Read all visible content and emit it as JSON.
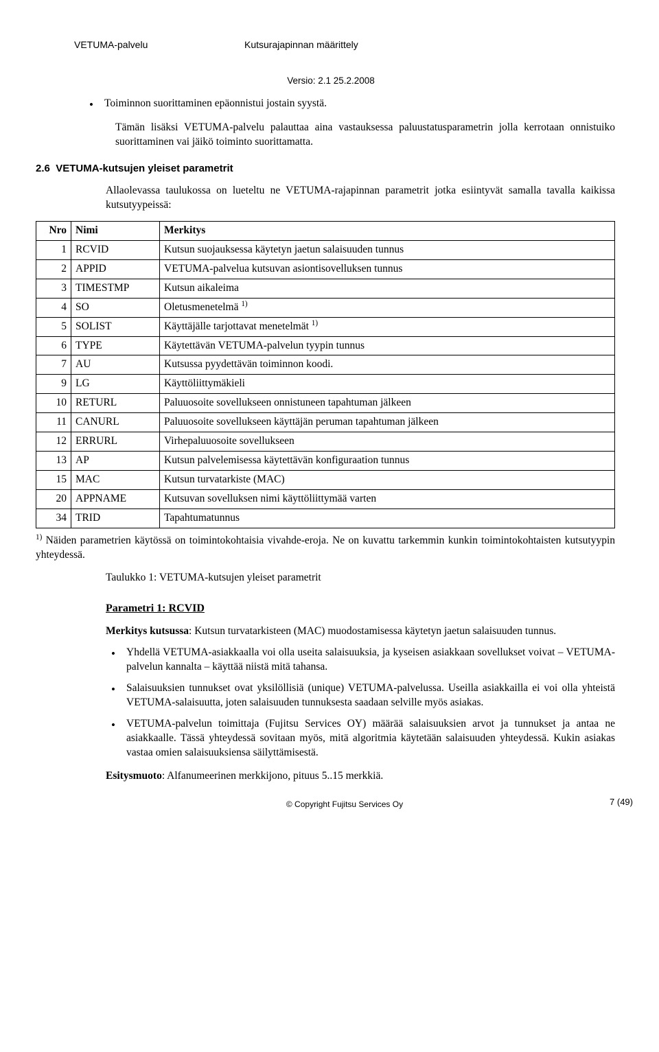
{
  "header": {
    "left": "VETUMA-palvelu",
    "center": "Kutsurajapinnan määrittely",
    "version": "Versio: 2.1  25.2.2008"
  },
  "intro": {
    "bullet": "Toiminnon suorittaminen epäonnistui jostain syystä.",
    "para": "Tämän lisäksi VETUMA-palvelu palauttaa aina vastauksessa paluustatusparametrin jolla kerrotaan onnistuiko suorittaminen vai jäikö toiminto suorittamatta."
  },
  "section": {
    "number": "2.6",
    "title": "VETUMA-kutsujen yleiset parametrit",
    "lead": "Allaolevassa taulukossa on lueteltu ne VETUMA-rajapinnan parametrit jotka esiintyvät samalla tavalla kaikissa kutsutyypeissä:"
  },
  "table": {
    "cols": {
      "nro": "Nro",
      "nimi": "Nimi",
      "merkitys": "Merkitys"
    },
    "rows": [
      {
        "nro": "1",
        "nimi": "RCVID",
        "merkitys": "Kutsun suojauksessa käytetyn jaetun salaisuuden tunnus",
        "sup": ""
      },
      {
        "nro": "2",
        "nimi": "APPID",
        "merkitys": "VETUMA-palvelua kutsuvan asiontisovelluksen tunnus",
        "sup": ""
      },
      {
        "nro": "3",
        "nimi": "TIMESTMP",
        "merkitys": "Kutsun aikaleima",
        "sup": ""
      },
      {
        "nro": "4",
        "nimi": "SO",
        "merkitys": "Oletusmenetelmä ",
        "sup": "1)"
      },
      {
        "nro": "5",
        "nimi": "SOLIST",
        "merkitys": "Käyttäjälle tarjottavat menetelmät ",
        "sup": "1)"
      },
      {
        "nro": "6",
        "nimi": "TYPE",
        "merkitys": "Käytettävän VETUMA-palvelun tyypin tunnus",
        "sup": ""
      },
      {
        "nro": "7",
        "nimi": "AU",
        "merkitys": "Kutsussa pyydettävän toiminnon koodi.",
        "sup": ""
      },
      {
        "nro": "9",
        "nimi": "LG",
        "merkitys": "Käyttöliittymäkieli",
        "sup": ""
      },
      {
        "nro": "10",
        "nimi": "RETURL",
        "merkitys": "Paluuosoite sovellukseen onnistuneen tapahtuman jälkeen",
        "sup": ""
      },
      {
        "nro": "11",
        "nimi": "CANURL",
        "merkitys": "Paluuosoite sovellukseen käyttäjän peruman tapahtuman jälkeen",
        "sup": ""
      },
      {
        "nro": "12",
        "nimi": "ERRURL",
        "merkitys": "Virhepaluuosoite sovellukseen",
        "sup": ""
      },
      {
        "nro": "13",
        "nimi": "AP",
        "merkitys": "Kutsun palvelemisessa käytettävän konfiguraation tunnus",
        "sup": ""
      },
      {
        "nro": "15",
        "nimi": "MAC",
        "merkitys": "Kutsun turvatarkiste (MAC)",
        "sup": ""
      },
      {
        "nro": "20",
        "nimi": "APPNAME",
        "merkitys": "Kutsuvan sovelluksen nimi käyttöliittymää varten",
        "sup": ""
      },
      {
        "nro": "34",
        "nimi": "TRID",
        "merkitys": "Tapahtumatunnus",
        "sup": ""
      }
    ]
  },
  "footnote": {
    "mark": "1)",
    "text": " Näiden parametrien käytössä on toimintokohtaisia vivahde-eroja. Ne on kuvattu tarkemmin kunkin toimintokohtaisten kutsutyypin yhteydessä."
  },
  "caption": "Taulukko 1: VETUMA-kutsujen yleiset parametrit",
  "param1": {
    "heading": "Parametri 1: RCVID",
    "meaning_label": "Merkitys kutsussa",
    "meaning_text": ": Kutsun turvatarkisteen (MAC) muodostamisessa käytetyn jaetun salaisuuden tunnus.",
    "bullets": [
      "Yhdellä VETUMA-asiakkaalla voi olla useita salaisuuksia, ja kyseisen asiakkaan sovellukset voivat – VETUMA-palvelun kannalta – käyttää niistä mitä tahansa.",
      "Salaisuuksien tunnukset ovat yksilöllisiä (unique) VETUMA-palvelussa. Useilla asiakkailla ei voi olla yhteistä VETUMA-salaisuutta, joten salaisuuden tunnuksesta saadaan selville myös asiakas.",
      "VETUMA-palvelun toimittaja (Fujitsu Services OY) määrää salaisuuksien arvot ja tunnukset ja antaa ne asiakkaalle. Tässä yhteydessä sovitaan myös, mitä algoritmia käytetään salaisuuden yhteydessä. Kukin asiakas vastaa omien salaisuuksiensa säilyttämisestä."
    ],
    "format_label": "Esitysmuoto",
    "format_text": ": Alfanumeerinen merkkijono, pituus 5..15 merkkiä."
  },
  "footer": {
    "copyright": "© Copyright Fujitsu Services Oy",
    "page": "7 (49)"
  }
}
